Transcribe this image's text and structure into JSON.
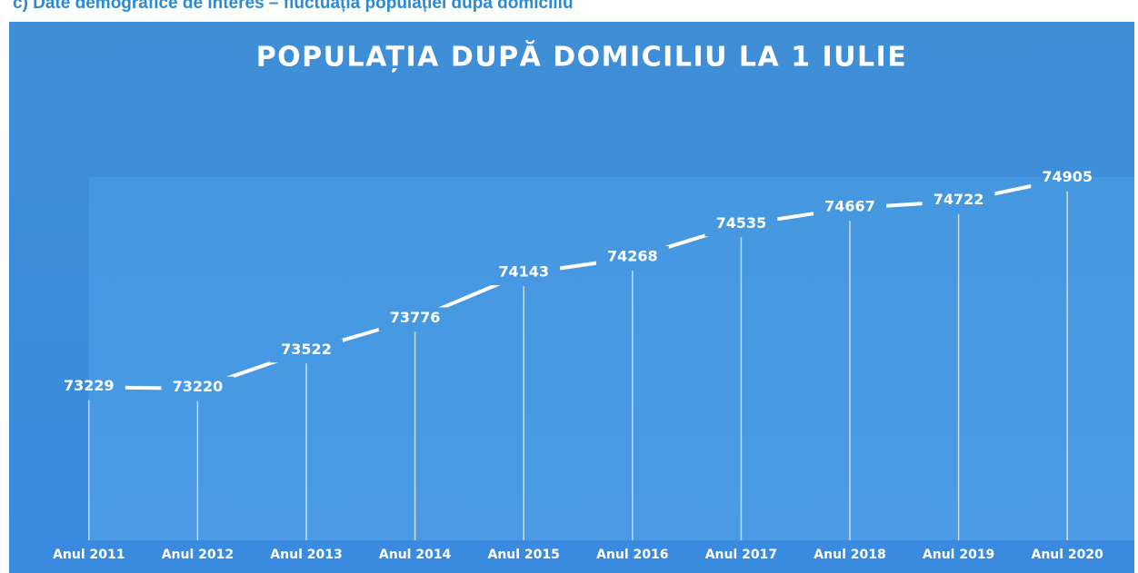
{
  "heading": "c) Date demografice de interes – fluctuația populației după domiciliu",
  "chart_data": {
    "type": "line",
    "title": "POPULAȚIA DUPĂ DOMICILIU LA 1 IULIE",
    "categories": [
      "Anul 2011",
      "Anul 2012",
      "Anul 2013",
      "Anul 2014",
      "Anul 2015",
      "Anul 2016",
      "Anul 2017",
      "Anul 2018",
      "Anul 2019",
      "Anul 2020"
    ],
    "values": [
      73229,
      73220,
      73522,
      73776,
      74143,
      74268,
      74535,
      74667,
      74722,
      74905
    ],
    "color": "#ffffff",
    "ylim": [
      72000,
      75500
    ]
  }
}
